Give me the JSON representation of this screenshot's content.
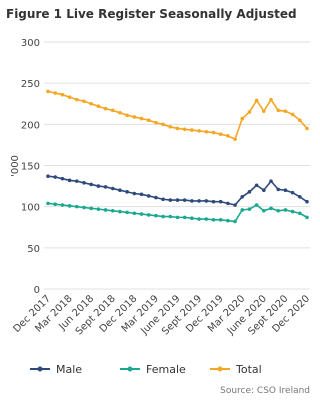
{
  "chart_data": {
    "type": "line",
    "title": "Figure 1 Live Register Seasonally Adjusted",
    "y_label": "'000",
    "source": "Source: CSO Ireland",
    "categories": [
      "Dec 2017",
      null,
      null,
      "Mar 2018",
      null,
      null,
      "Jun 2018",
      null,
      null,
      "Sept 2018",
      null,
      null,
      "Dec 2018",
      null,
      null,
      "Mar 2019",
      null,
      null,
      "June 2019",
      null,
      null,
      "Sept 2019",
      null,
      null,
      "Dec 2019",
      null,
      null,
      "Mar 2020",
      null,
      null,
      "June 2020",
      null,
      null,
      "Sept 2020",
      null,
      null,
      "Dec 2020"
    ],
    "series": [
      {
        "name": "Male",
        "color": "#2e4a7d",
        "values": [
          137,
          136,
          134,
          132,
          131,
          129,
          127,
          125,
          124,
          122,
          120,
          118,
          116,
          115,
          113,
          111,
          109,
          108,
          108,
          108,
          107,
          107,
          107,
          106,
          106,
          104,
          102,
          112,
          118,
          126,
          120,
          131,
          121,
          120,
          117,
          112,
          106
        ]
      },
      {
        "name": "Female",
        "color": "#1aa98f",
        "values": [
          104,
          103,
          102,
          101,
          100,
          99,
          98,
          97,
          96,
          95,
          94,
          93,
          92,
          91,
          90,
          89,
          88,
          88,
          87,
          87,
          86,
          85,
          85,
          84,
          84,
          83,
          82,
          96,
          97,
          102,
          95,
          98,
          95,
          96,
          94,
          92,
          87
        ]
      },
      {
        "name": "Total",
        "color": "#f5a623",
        "values": [
          240,
          238,
          236,
          233,
          230,
          228,
          225,
          222,
          219,
          217,
          214,
          211,
          209,
          207,
          205,
          202,
          200,
          197,
          195,
          194,
          193,
          192,
          191,
          190,
          188,
          186,
          182,
          207,
          215,
          229,
          216,
          230,
          217,
          216,
          212,
          205,
          195
        ]
      }
    ],
    "ylim": [
      0,
      300
    ],
    "yticks": [
      0,
      50,
      100,
      150,
      200,
      250,
      300
    ],
    "grid": true
  }
}
